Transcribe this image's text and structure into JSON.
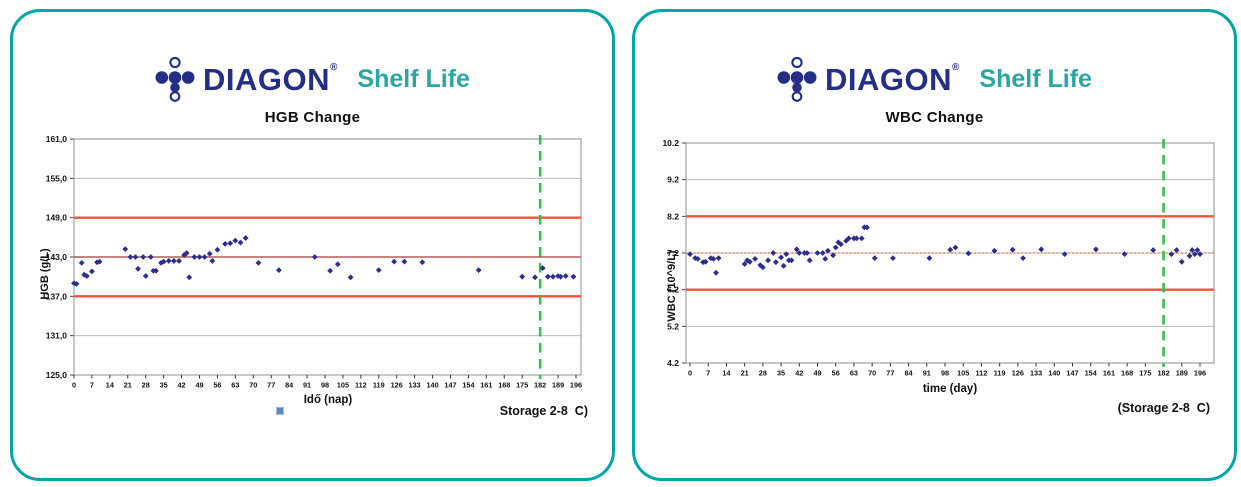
{
  "logo": {
    "brand": "DIAGON",
    "registered": "®",
    "tagline": "Shelf Life"
  },
  "panels": [
    {
      "name": "hgb-panel"
    },
    {
      "name": "wbc-panel"
    }
  ],
  "colors": {
    "panel_border": "#00a6a6",
    "brand_navy": "#242e86",
    "tagline_teal": "#2aa7a3",
    "limit_red": "#f1503b",
    "center_dark_red": "#a03c34",
    "target_dotted_orange": "#e4694e",
    "shelf_life_green": "#3abf4e",
    "point_navy": "#2d2d8e",
    "legend_marker_blue": "#5e87c4"
  },
  "chart_data": [
    {
      "type": "scatter",
      "title": "HGB Change",
      "xlabel": "Idő (nap)",
      "ylabel": "HGB (g/L)",
      "annotation": "Storage 2-8  C)",
      "xlim": [
        0,
        196
      ],
      "ylim": [
        125,
        161
      ],
      "grid": "horizontal",
      "legend_position": "none",
      "legend_marker_color": "#5e87c4",
      "yticks": [
        161,
        155,
        149,
        143,
        137,
        131,
        125
      ],
      "ytick_labels": [
        "161,0",
        "155,0",
        "149,0",
        "143,0",
        "137,0",
        "131,0",
        "125,0"
      ],
      "xticks": [
        0,
        7,
        14,
        21,
        28,
        35,
        42,
        49,
        56,
        63,
        70,
        77,
        84,
        91,
        98,
        105,
        112,
        119,
        126,
        133,
        140,
        147,
        154,
        161,
        168,
        175,
        182,
        189,
        196
      ],
      "xtick_labels": [
        "0",
        "7",
        "14",
        "21",
        "28",
        "35",
        "42",
        "49",
        "56",
        "63",
        "70",
        "77",
        "84",
        "91",
        "98",
        "105",
        "112",
        "119",
        "126",
        "133",
        "140",
        "147",
        "154",
        "161",
        "168",
        "175",
        "182",
        "189",
        "196"
      ],
      "ref_lines": [
        {
          "y": 149.0,
          "color": "#f1503b",
          "style": "solid",
          "width": 2.4
        },
        {
          "y": 143.0,
          "color": "#a03c34",
          "style": "solid",
          "width": 1.3
        },
        {
          "y": 137.0,
          "color": "#f1503b",
          "style": "solid",
          "width": 2.4
        }
      ],
      "vline": {
        "x": 182,
        "color": "#3abf4e",
        "style": "dashed",
        "width": 2.6
      },
      "series": [
        {
          "name": "Idő (nap)",
          "marker": "diamond",
          "color": "#2d2d8e",
          "points": [
            [
              0,
              139.0
            ],
            [
              1,
              138.9
            ],
            [
              3,
              142.1
            ],
            [
              4,
              140.3
            ],
            [
              5,
              140.1
            ],
            [
              7,
              140.8
            ],
            [
              9,
              142.2
            ],
            [
              10,
              142.3
            ],
            [
              20,
              144.2
            ],
            [
              22,
              143.0
            ],
            [
              24,
              143.0
            ],
            [
              25,
              141.2
            ],
            [
              27,
              143.0
            ],
            [
              28,
              140.1
            ],
            [
              30,
              143.0
            ],
            [
              31,
              140.9
            ],
            [
              32,
              140.9
            ],
            [
              34,
              142.1
            ],
            [
              35,
              142.3
            ],
            [
              37,
              142.4
            ],
            [
              39,
              142.4
            ],
            [
              41,
              142.4
            ],
            [
              43,
              143.3
            ],
            [
              44,
              143.6
            ],
            [
              45,
              139.9
            ],
            [
              47,
              143.0
            ],
            [
              49,
              143.0
            ],
            [
              51,
              143.0
            ],
            [
              53,
              143.5
            ],
            [
              54,
              142.4
            ],
            [
              56,
              144.1
            ],
            [
              59,
              145.0
            ],
            [
              61,
              145.1
            ],
            [
              63,
              145.5
            ],
            [
              65,
              145.2
            ],
            [
              67,
              145.9
            ],
            [
              72,
              142.1
            ],
            [
              80,
              141.0
            ],
            [
              94,
              143.0
            ],
            [
              100,
              140.9
            ],
            [
              103,
              141.9
            ],
            [
              108,
              139.9
            ],
            [
              119,
              141.0
            ],
            [
              125,
              142.3
            ],
            [
              129,
              142.3
            ],
            [
              136,
              142.2
            ],
            [
              158,
              141.0
            ],
            [
              175,
              140.0
            ],
            [
              180,
              139.9
            ],
            [
              183,
              141.3
            ],
            [
              185,
              140.0
            ],
            [
              187,
              140.0
            ],
            [
              189,
              140.1
            ],
            [
              190,
              140.0
            ],
            [
              192,
              140.1
            ],
            [
              195,
              140.0
            ]
          ]
        }
      ]
    },
    {
      "type": "scatter",
      "title": "WBC Change",
      "xlabel": "time (day)",
      "ylabel": "WBC (10^9/L)",
      "annotation": "(Storage 2-8  C)",
      "xlim": [
        0,
        196
      ],
      "ylim": [
        4.2,
        10.2
      ],
      "grid": "horizontal",
      "legend_position": "none",
      "yticks": [
        10.2,
        9.2,
        8.2,
        7.2,
        6.2,
        5.2,
        4.2
      ],
      "ytick_labels": [
        "10.2",
        "9.2",
        "8.2",
        "7.2",
        "6.2",
        "5.2",
        "4.2"
      ],
      "xticks": [
        0,
        7,
        14,
        21,
        28,
        35,
        42,
        49,
        56,
        63,
        70,
        77,
        84,
        91,
        98,
        105,
        112,
        119,
        126,
        133,
        140,
        147,
        154,
        161,
        168,
        175,
        182,
        189,
        196
      ],
      "xtick_labels": [
        "0",
        "7",
        "14",
        "21",
        "28",
        "35",
        "42",
        "49",
        "56",
        "63",
        "70",
        "77",
        "84",
        "91",
        "98",
        "105",
        "112",
        "119",
        "126",
        "133",
        "140",
        "147",
        "154",
        "161",
        "168",
        "175",
        "182",
        "189",
        "196"
      ],
      "ref_lines": [
        {
          "y": 8.2,
          "color": "#f1503b",
          "style": "solid",
          "width": 2.4
        },
        {
          "y": 7.2,
          "color": "#e4694e",
          "style": "dotted",
          "width": 1.2
        },
        {
          "y": 6.2,
          "color": "#f1503b",
          "style": "solid",
          "width": 2.4
        }
      ],
      "vline": {
        "x": 182,
        "color": "#3abf4e",
        "style": "dashed",
        "width": 2.6
      },
      "series": [
        {
          "name": "WBC",
          "marker": "diamond",
          "color": "#2d2d8e",
          "points": [
            [
              0,
              7.17
            ],
            [
              2,
              7.06
            ],
            [
              3,
              7.04
            ],
            [
              5,
              6.95
            ],
            [
              6,
              6.96
            ],
            [
              8,
              7.06
            ],
            [
              9,
              7.04
            ],
            [
              10,
              6.66
            ],
            [
              11,
              7.06
            ],
            [
              21,
              6.9
            ],
            [
              22,
              7.0
            ],
            [
              23,
              6.96
            ],
            [
              25,
              7.04
            ],
            [
              27,
              6.87
            ],
            [
              28,
              6.81
            ],
            [
              30,
              7.0
            ],
            [
              32,
              7.2
            ],
            [
              33,
              6.95
            ],
            [
              35,
              7.08
            ],
            [
              36,
              6.85
            ],
            [
              37,
              7.17
            ],
            [
              38,
              7.0
            ],
            [
              39,
              7.0
            ],
            [
              41,
              7.3
            ],
            [
              42,
              7.2
            ],
            [
              44,
              7.2
            ],
            [
              45,
              7.2
            ],
            [
              46,
              7.0
            ],
            [
              49,
              7.2
            ],
            [
              51,
              7.2
            ],
            [
              52,
              7.04
            ],
            [
              53,
              7.26
            ],
            [
              55,
              7.14
            ],
            [
              56,
              7.35
            ],
            [
              57,
              7.49
            ],
            [
              58,
              7.44
            ],
            [
              60,
              7.53
            ],
            [
              61,
              7.6
            ],
            [
              63,
              7.6
            ],
            [
              64,
              7.6
            ],
            [
              66,
              7.6
            ],
            [
              67,
              7.9
            ],
            [
              68,
              7.9
            ],
            [
              71,
              7.06
            ],
            [
              78,
              7.06
            ],
            [
              92,
              7.06
            ],
            [
              100,
              7.29
            ],
            [
              102,
              7.35
            ],
            [
              107,
              7.19
            ],
            [
              117,
              7.26
            ],
            [
              124,
              7.29
            ],
            [
              128,
              7.06
            ],
            [
              135,
              7.3
            ],
            [
              144,
              7.17
            ],
            [
              156,
              7.3
            ],
            [
              167,
              7.17
            ],
            [
              178,
              7.28
            ],
            [
              185,
              7.17
            ],
            [
              187,
              7.28
            ],
            [
              189,
              6.96
            ],
            [
              192,
              7.12
            ],
            [
              193,
              7.28
            ],
            [
              194,
              7.17
            ],
            [
              195,
              7.28
            ],
            [
              196,
              7.17
            ]
          ]
        }
      ]
    }
  ]
}
